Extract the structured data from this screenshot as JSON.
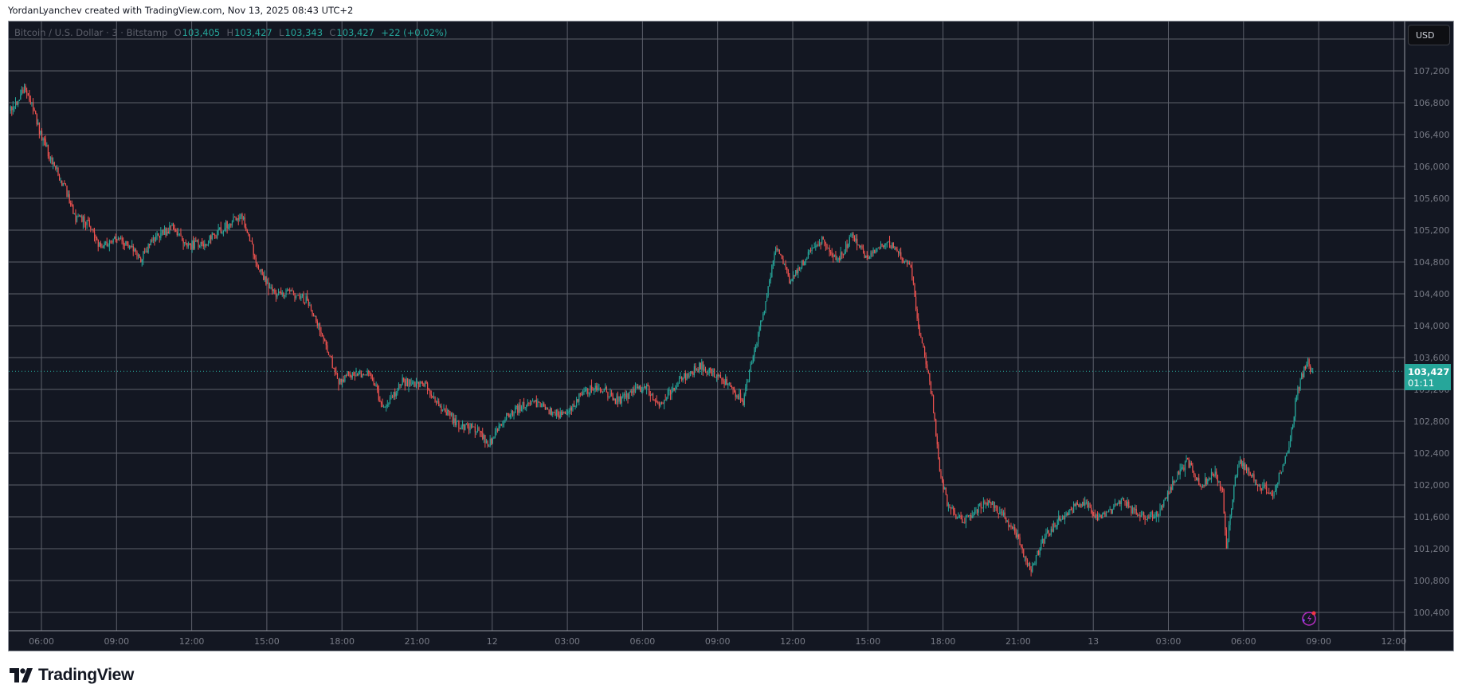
{
  "credit": "YordanLyanchev created with TradingView.com, Nov 13, 2025 08:43 UTC+2",
  "legend": {
    "symbol": "Bitcoin / U.S. Dollar · 3 · Bitstamp",
    "o_label": "O",
    "o_value": "103,405",
    "h_label": "H",
    "h_value": "103,427",
    "l_label": "L",
    "l_value": "103,343",
    "c_label": "C",
    "c_value": "103,427",
    "change": "+22 (+0.02%)"
  },
  "currency_button": "USD",
  "last_price": {
    "value": "103,427",
    "countdown": "01:11",
    "price": 103427
  },
  "logo_text": "TradingView",
  "colors": {
    "up": "#26a69a",
    "down": "#ef5350",
    "background": "#131722",
    "grid": "#5d606b",
    "accent": "#26a69a"
  },
  "icons": [
    "lightning-alert-icon",
    "tradingview-logo-icon"
  ],
  "chart_data": {
    "type": "candlestick",
    "interval_minutes": 3,
    "grid": true,
    "y_ticks": [
      "107,200",
      "106,800",
      "106,400",
      "106,000",
      "105,600",
      "105,200",
      "104,800",
      "104,400",
      "104,000",
      "103,600",
      "103,200",
      "102,800",
      "102,400",
      "102,000",
      "101,600",
      "101,200",
      "100,800",
      "100,400"
    ],
    "x_ticks": [
      "06:00",
      "09:00",
      "12:00",
      "15:00",
      "18:00",
      "21:00",
      "12",
      "03:00",
      "06:00",
      "09:00",
      "12:00",
      "15:00",
      "18:00",
      "21:00",
      "13",
      "03:00",
      "06:00",
      "09:00",
      "12:00"
    ],
    "approx_close_path": [
      [
        "2025-11-11 04:45",
        106700
      ],
      [
        "2025-11-11 05:22",
        107000
      ],
      [
        "2025-11-11 05:51",
        106500
      ],
      [
        "2025-11-11 06:25",
        106050
      ],
      [
        "2025-11-11 06:58",
        105700
      ],
      [
        "2025-11-11 07:20",
        105350
      ],
      [
        "2025-11-11 07:54",
        105300
      ],
      [
        "2025-11-11 08:16",
        105000
      ],
      [
        "2025-11-11 09:01",
        105100
      ],
      [
        "2025-11-11 09:57",
        104850
      ],
      [
        "2025-11-11 10:31",
        105100
      ],
      [
        "2025-11-11 11:16",
        105250
      ],
      [
        "2025-11-11 11:49",
        105000
      ],
      [
        "2025-11-11 12:34",
        105050
      ],
      [
        "2025-11-11 13:19",
        105250
      ],
      [
        "2025-11-11 13:59",
        105400
      ],
      [
        "2025-11-11 14:22",
        105000
      ],
      [
        "2025-11-11 14:49",
        104600
      ],
      [
        "2025-11-11 15:22",
        104400
      ],
      [
        "2025-11-11 16:07",
        104400
      ],
      [
        "2025-11-11 16:40",
        104300
      ],
      [
        "2025-11-11 17:03",
        104000
      ],
      [
        "2025-11-11 17:25",
        103700
      ],
      [
        "2025-11-11 17:48",
        103300
      ],
      [
        "2025-11-11 18:21",
        103400
      ],
      [
        "2025-11-11 19:06",
        103400
      ],
      [
        "2025-11-11 19:40",
        102950
      ],
      [
        "2025-11-11 20:24",
        103300
      ],
      [
        "2025-11-11 21:20",
        103250
      ],
      [
        "2025-11-11 21:54",
        103000
      ],
      [
        "2025-11-11 22:39",
        102750
      ],
      [
        "2025-11-11 23:24",
        102700
      ],
      [
        "2025-11-11 23:50",
        102500
      ],
      [
        "2025-11-12 00:30",
        102850
      ],
      [
        "2025-11-12 01:26",
        103050
      ],
      [
        "2025-11-12 02:11",
        102950
      ],
      [
        "2025-11-12 02:56",
        102850
      ],
      [
        "2025-11-12 03:30",
        103150
      ],
      [
        "2025-11-12 04:14",
        103250
      ],
      [
        "2025-11-12 04:59",
        103050
      ],
      [
        "2025-11-12 06:06",
        103250
      ],
      [
        "2025-11-12 06:40",
        103000
      ],
      [
        "2025-11-12 07:24",
        103300
      ],
      [
        "2025-11-12 08:20",
        103500
      ],
      [
        "2025-11-12 09:05",
        103350
      ],
      [
        "2025-11-12 10:01",
        103050
      ],
      [
        "2025-11-12 10:23",
        103600
      ],
      [
        "2025-11-12 10:46",
        104100
      ],
      [
        "2025-11-12 11:19",
        105000
      ],
      [
        "2025-11-12 11:53",
        104550
      ],
      [
        "2025-11-12 12:38",
        104900
      ],
      [
        "2025-11-12 13:11",
        105100
      ],
      [
        "2025-11-12 13:45",
        104800
      ],
      [
        "2025-11-12 14:23",
        105150
      ],
      [
        "2025-11-12 14:52",
        104850
      ],
      [
        "2025-11-12 15:48",
        105050
      ],
      [
        "2025-11-12 16:21",
        104850
      ],
      [
        "2025-11-12 16:44",
        104700
      ],
      [
        "2025-11-12 16:59",
        104000
      ],
      [
        "2025-11-12 17:17",
        103600
      ],
      [
        "2025-11-12 17:33",
        103100
      ],
      [
        "2025-11-12 17:51",
        102200
      ],
      [
        "2025-11-12 18:13",
        101700
      ],
      [
        "2025-11-12 18:47",
        101550
      ],
      [
        "2025-11-12 19:43",
        101800
      ],
      [
        "2025-11-12 20:28",
        101600
      ],
      [
        "2025-11-12 21:01",
        101300
      ],
      [
        "2025-11-12 21:30",
        100900
      ],
      [
        "2025-11-12 21:57",
        101300
      ],
      [
        "2025-11-12 22:42",
        101600
      ],
      [
        "2025-11-12 23:38",
        101800
      ],
      [
        "2025-11-13 00:11",
        101550
      ],
      [
        "2025-11-13 01:07",
        101800
      ],
      [
        "2025-11-13 01:52",
        101600
      ],
      [
        "2025-11-13 02:37",
        101650
      ],
      [
        "2025-11-13 03:17",
        102100
      ],
      [
        "2025-11-13 03:44",
        102300
      ],
      [
        "2025-11-13 04:18",
        102000
      ],
      [
        "2025-11-13 04:51",
        102150
      ],
      [
        "2025-11-13 05:09",
        101900
      ],
      [
        "2025-11-13 05:18",
        101200
      ],
      [
        "2025-11-13 05:31",
        101800
      ],
      [
        "2025-11-13 05:47",
        102300
      ],
      [
        "2025-11-13 06:21",
        102100
      ],
      [
        "2025-11-13 07:06",
        101850
      ],
      [
        "2025-11-13 07:24",
        102100
      ],
      [
        "2025-11-13 07:46",
        102450
      ],
      [
        "2025-11-13 08:09",
        103200
      ],
      [
        "2025-11-13 08:31",
        103550
      ],
      [
        "2025-11-13 08:45",
        103427
      ]
    ]
  }
}
